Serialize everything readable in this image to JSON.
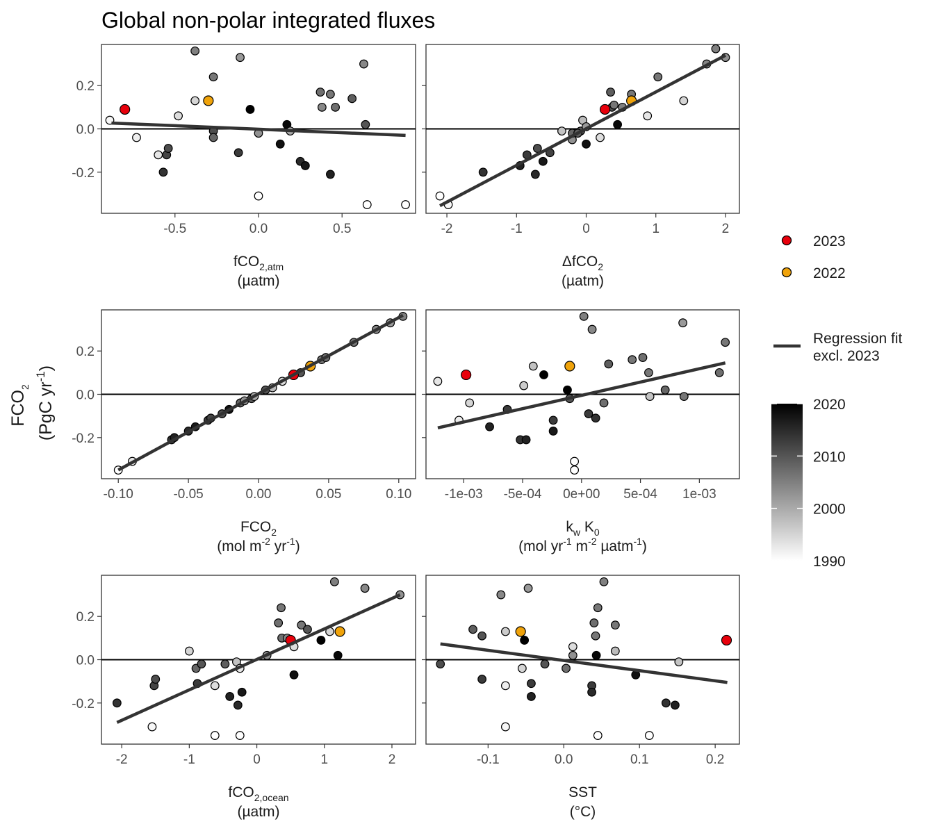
{
  "title": "Global non-polar integrated fluxes",
  "y_axis": {
    "main": "FCO",
    "sub": "2",
    "unit_a": "(PgC yr",
    "unit_sup": "-1",
    "unit_b": ")"
  },
  "legend": {
    "points": [
      {
        "label": "2023",
        "color": "#e8000b"
      },
      {
        "label": "2022",
        "color": "#f0a30a"
      }
    ],
    "fit_label_line1": "Regression fit",
    "fit_label_line2": "excl. 2023",
    "colorbar": {
      "min": 1990,
      "max": 2020,
      "ticks": [
        "2020",
        "2010",
        "2000",
        "1990"
      ],
      "low_color": "#ffffff",
      "high_color": "#000000"
    }
  },
  "chart_data": [
    {
      "type": "scatter",
      "id": "fco2atm",
      "xlabel_parts": [
        [
          "fCO",
          ""
        ],
        [
          "2,atm",
          "sub"
        ]
      ],
      "xlabel_line2": "(µatm)",
      "x_ticks": [
        "-0.5",
        "0.0",
        "0.5"
      ],
      "x_tick_values": [
        -0.5,
        0.0,
        0.5
      ],
      "xlim": [
        -0.94,
        0.94
      ],
      "ylim": [
        -0.39,
        0.39
      ],
      "y_ticks": [
        "0.2",
        "0.0",
        "-0.2"
      ],
      "y_tick_values": [
        0.2,
        0.0,
        -0.2
      ],
      "fit": {
        "x": [
          -0.88,
          0.88
        ],
        "y": [
          0.027,
          -0.03
        ]
      },
      "points": [
        [
          -0.89,
          0.04,
          1991
        ],
        [
          -0.8,
          0.09,
          2023
        ],
        [
          -0.73,
          -0.04,
          1992
        ],
        [
          -0.6,
          -0.12,
          1993
        ],
        [
          -0.57,
          -0.2,
          2014
        ],
        [
          -0.55,
          -0.12,
          2012
        ],
        [
          -0.54,
          -0.09,
          2011
        ],
        [
          -0.48,
          0.06,
          1994
        ],
        [
          -0.38,
          0.36,
          2005
        ],
        [
          -0.38,
          0.13,
          1995
        ],
        [
          -0.3,
          0.13,
          2022
        ],
        [
          -0.27,
          0.24,
          2006
        ],
        [
          -0.27,
          -0.01,
          2011
        ],
        [
          -0.27,
          -0.04,
          2008
        ],
        [
          -0.12,
          -0.11,
          2013
        ],
        [
          -0.11,
          0.33,
          2002
        ],
        [
          -0.05,
          0.09,
          2020
        ],
        [
          0.0,
          -0.02,
          2003
        ],
        [
          0.0,
          -0.31,
          1990
        ],
        [
          0.13,
          -0.07,
          2018
        ],
        [
          0.17,
          0.02,
          2019
        ],
        [
          0.19,
          -0.01,
          2000
        ],
        [
          0.25,
          -0.15,
          2015
        ],
        [
          0.28,
          -0.17,
          2017
        ],
        [
          0.37,
          0.17,
          2007
        ],
        [
          0.38,
          0.1,
          2004
        ],
        [
          0.43,
          0.16,
          2006
        ],
        [
          0.43,
          -0.21,
          2016
        ],
        [
          0.46,
          0.1,
          2007
        ],
        [
          0.56,
          0.14,
          2009
        ],
        [
          0.63,
          0.3,
          2004
        ],
        [
          0.64,
          0.02,
          2010
        ],
        [
          0.65,
          -0.35,
          1989
        ],
        [
          0.88,
          -0.35,
          1990
        ]
      ]
    },
    {
      "type": "scatter",
      "id": "dfco2",
      "xlabel_parts": [
        [
          "ΔfCO",
          ""
        ],
        [
          "2",
          "sub"
        ]
      ],
      "xlabel_line2": "(µatm)",
      "x_ticks": [
        "-2",
        "-1",
        "0",
        "1",
        "2"
      ],
      "x_tick_values": [
        -2,
        -1,
        0,
        1,
        2
      ],
      "xlim": [
        -2.3,
        2.2
      ],
      "ylim": [
        -0.39,
        0.39
      ],
      "y_ticks": [],
      "y_tick_values": [
        0.2,
        0.0,
        -0.2
      ],
      "fit": {
        "x": [
          -2.1,
          2.0
        ],
        "y": [
          -0.355,
          0.34
        ]
      },
      "points": [
        [
          -2.1,
          -0.31,
          1990
        ],
        [
          -1.98,
          -0.35,
          1991
        ],
        [
          -1.48,
          -0.2,
          2014
        ],
        [
          -0.95,
          -0.17,
          2016
        ],
        [
          -0.85,
          -0.12,
          2013
        ],
        [
          -0.73,
          -0.21,
          2015
        ],
        [
          -0.7,
          -0.09,
          2011
        ],
        [
          -0.62,
          -0.15,
          2017
        ],
        [
          -0.52,
          -0.11,
          2012
        ],
        [
          -0.35,
          -0.01,
          1997
        ],
        [
          -0.2,
          -0.05,
          2003
        ],
        [
          -0.2,
          -0.02,
          2008
        ],
        [
          -0.08,
          -0.01,
          2010
        ],
        [
          -0.05,
          0.04,
          1998
        ],
        [
          0.0,
          0.01,
          2002
        ],
        [
          0.0,
          -0.07,
          2018
        ],
        [
          -0.12,
          -0.02,
          2009
        ],
        [
          0.2,
          -0.04,
          1994
        ],
        [
          0.27,
          0.09,
          2023
        ],
        [
          0.35,
          0.17,
          2009
        ],
        [
          0.37,
          0.1,
          2010
        ],
        [
          0.4,
          0.11,
          2006
        ],
        [
          0.45,
          0.02,
          2019
        ],
        [
          0.52,
          0.1,
          2005
        ],
        [
          0.65,
          0.16,
          2006
        ],
        [
          0.65,
          0.13,
          2022
        ],
        [
          0.88,
          0.06,
          1993
        ],
        [
          1.03,
          0.24,
          2006
        ],
        [
          1.4,
          0.13,
          1995
        ],
        [
          1.73,
          0.3,
          2004
        ],
        [
          1.86,
          0.37,
          2005
        ],
        [
          2.0,
          0.33,
          2003
        ]
      ]
    },
    {
      "type": "scatter",
      "id": "fco2flux",
      "xlabel_parts": [
        [
          "FCO",
          ""
        ],
        [
          "2",
          "sub"
        ]
      ],
      "xlabel_line2_parts": [
        [
          "(mol m",
          ""
        ],
        [
          "-2",
          "sup"
        ],
        [
          " yr",
          ""
        ],
        [
          "-1",
          "sup"
        ],
        [
          ")",
          ""
        ]
      ],
      "x_ticks": [
        "-0.10",
        "-0.05",
        "0.00",
        "0.05",
        "0.10"
      ],
      "x_tick_values": [
        -0.1,
        -0.05,
        0.0,
        0.05,
        0.1
      ],
      "xlim": [
        -0.112,
        0.112
      ],
      "ylim": [
        -0.39,
        0.39
      ],
      "y_ticks": [
        "0.2",
        "0.0",
        "-0.2"
      ],
      "y_tick_values": [
        0.2,
        0.0,
        -0.2
      ],
      "fit": {
        "x": [
          -0.1,
          0.103
        ],
        "y": [
          -0.35,
          0.365
        ]
      },
      "points": [
        [
          -0.1,
          -0.35,
          1989
        ],
        [
          -0.09,
          -0.31,
          1993
        ],
        [
          -0.062,
          -0.21,
          2014
        ],
        [
          -0.06,
          -0.2,
          2016
        ],
        [
          -0.05,
          -0.17,
          2015
        ],
        [
          -0.045,
          -0.15,
          2017
        ],
        [
          -0.036,
          -0.12,
          2013
        ],
        [
          -0.034,
          -0.11,
          2012
        ],
        [
          -0.026,
          -0.09,
          2011
        ],
        [
          -0.021,
          -0.07,
          2018
        ],
        [
          -0.013,
          -0.04,
          2008
        ],
        [
          -0.01,
          -0.03,
          2003
        ],
        [
          -0.005,
          -0.02,
          2009
        ],
        [
          -0.003,
          -0.01,
          2000
        ],
        [
          0.005,
          0.02,
          2010
        ],
        [
          0.01,
          0.03,
          1998
        ],
        [
          0.017,
          0.06,
          1994
        ],
        [
          0.025,
          0.09,
          2023
        ],
        [
          0.03,
          0.1,
          2010
        ],
        [
          0.037,
          0.13,
          2022
        ],
        [
          0.045,
          0.16,
          2006
        ],
        [
          0.048,
          0.17,
          2007
        ],
        [
          0.068,
          0.24,
          2006
        ],
        [
          0.084,
          0.3,
          2004
        ],
        [
          0.094,
          0.33,
          2002
        ],
        [
          0.103,
          0.36,
          2005
        ]
      ]
    },
    {
      "type": "scatter",
      "id": "kwk0",
      "xlabel_parts": [
        [
          "k",
          ""
        ],
        [
          "w",
          "sub"
        ],
        [
          " K",
          ""
        ],
        [
          "0",
          "sub"
        ]
      ],
      "xlabel_line2_parts": [
        [
          "(mol yr",
          ""
        ],
        [
          "-1",
          "sup"
        ],
        [
          " m",
          ""
        ],
        [
          "-2",
          "sup"
        ],
        [
          " µatm",
          ""
        ],
        [
          "-1",
          "sup"
        ],
        [
          ")",
          ""
        ]
      ],
      "x_ticks": [
        "-1e-03",
        "-5e-04",
        "0e+00",
        "5e-04",
        "1e-03"
      ],
      "x_tick_values": [
        -0.001,
        -0.0005,
        0.0,
        0.0005,
        0.001
      ],
      "xlim": [
        -0.00132,
        0.00134
      ],
      "ylim": [
        -0.39,
        0.39
      ],
      "y_ticks": [],
      "y_tick_values": [
        0.2,
        0.0,
        -0.2
      ],
      "fit": {
        "x": [
          -0.00122,
          0.00122
        ],
        "y": [
          -0.155,
          0.145
        ]
      },
      "points": [
        [
          -0.00122,
          0.06,
          1993
        ],
        [
          -0.00098,
          0.09,
          2023
        ],
        [
          -0.00095,
          -0.04,
          1995
        ],
        [
          -0.00104,
          -0.12,
          1992
        ],
        [
          -0.00078,
          -0.15,
          2016
        ],
        [
          -0.00063,
          -0.07,
          2013
        ],
        [
          -0.00052,
          -0.21,
          2014
        ],
        [
          -0.00047,
          -0.21,
          2016
        ],
        [
          -0.00049,
          0.04,
          1996
        ],
        [
          -0.00041,
          0.13,
          1997
        ],
        [
          -0.00032,
          0.09,
          2020
        ],
        [
          -0.00024,
          -0.12,
          2013
        ],
        [
          -0.00024,
          -0.17,
          2017
        ],
        [
          -0.0001,
          0.13,
          2022
        ],
        [
          -0.00012,
          0.02,
          2020
        ],
        [
          -0.0001,
          -0.02,
          2010
        ],
        [
          -6e-05,
          -0.31,
          1990
        ],
        [
          -6e-05,
          -0.35,
          1990
        ],
        [
          2e-05,
          0.36,
          2005
        ],
        [
          6e-05,
          -0.09,
          2013
        ],
        [
          9e-05,
          0.3,
          2004
        ],
        [
          0.00012,
          -0.11,
          2014
        ],
        [
          0.00019,
          -0.04,
          2007
        ],
        [
          0.00023,
          0.14,
          2009
        ],
        [
          0.00043,
          0.16,
          2006
        ],
        [
          0.00052,
          0.17,
          2007
        ],
        [
          0.00057,
          0.1,
          2006
        ],
        [
          0.00058,
          -0.01,
          1997
        ],
        [
          0.00071,
          0.02,
          2008
        ],
        [
          0.00086,
          0.33,
          2002
        ],
        [
          0.00087,
          -0.01,
          2006
        ],
        [
          0.00117,
          0.1,
          2007
        ],
        [
          0.00122,
          0.24,
          2006
        ]
      ]
    },
    {
      "type": "scatter",
      "id": "fco2ocean",
      "xlabel_parts": [
        [
          "fCO",
          ""
        ],
        [
          "2,ocean",
          "sub"
        ]
      ],
      "xlabel_line2": "(µatm)",
      "x_ticks": [
        "-2",
        "-1",
        "0",
        "1",
        "2"
      ],
      "x_tick_values": [
        -2,
        -1,
        0,
        1,
        2
      ],
      "xlim": [
        -2.3,
        2.35
      ],
      "ylim": [
        -0.39,
        0.39
      ],
      "y_ticks": [
        "0.2",
        "0.0",
        "-0.2"
      ],
      "y_tick_values": [
        0.2,
        0.0,
        -0.2
      ],
      "fit": {
        "x": [
          -2.07,
          2.12
        ],
        "y": [
          -0.29,
          0.3
        ]
      },
      "points": [
        [
          -2.07,
          -0.2,
          2014
        ],
        [
          -1.55,
          -0.31,
          1991
        ],
        [
          -1.52,
          -0.12,
          2012
        ],
        [
          -1.5,
          -0.09,
          2011
        ],
        [
          -1.0,
          0.04,
          1995
        ],
        [
          -0.9,
          -0.04,
          2008
        ],
        [
          -0.88,
          -0.11,
          2013
        ],
        [
          -0.82,
          -0.02,
          2010
        ],
        [
          -0.62,
          -0.35,
          1990
        ],
        [
          -0.62,
          -0.12,
          1994
        ],
        [
          -0.47,
          -0.02,
          2009
        ],
        [
          -0.4,
          -0.17,
          2016
        ],
        [
          -0.3,
          -0.01,
          1997
        ],
        [
          -0.28,
          -0.21,
          2015
        ],
        [
          -0.25,
          -0.35,
          1990
        ],
        [
          -0.25,
          -0.04,
          1993
        ],
        [
          -0.22,
          -0.15,
          2017
        ],
        [
          0.15,
          0.02,
          2003
        ],
        [
          0.32,
          0.17,
          2007
        ],
        [
          0.36,
          0.24,
          2006
        ],
        [
          0.37,
          0.1,
          2007
        ],
        [
          0.45,
          0.1,
          2004
        ],
        [
          0.5,
          0.09,
          2023
        ],
        [
          0.55,
          -0.07,
          2018
        ],
        [
          0.55,
          0.06,
          1994
        ],
        [
          0.66,
          0.16,
          2006
        ],
        [
          0.75,
          0.14,
          2010
        ],
        [
          0.95,
          0.09,
          2020
        ],
        [
          1.08,
          0.13,
          1995
        ],
        [
          1.15,
          0.36,
          2005
        ],
        [
          1.2,
          0.02,
          2019
        ],
        [
          1.23,
          0.13,
          2022
        ],
        [
          1.6,
          0.33,
          2004
        ],
        [
          2.12,
          0.3,
          2003
        ]
      ]
    },
    {
      "type": "scatter",
      "id": "sst",
      "xlabel_parts": [
        [
          "SST",
          ""
        ]
      ],
      "xlabel_line2": "(°C)",
      "x_ticks": [
        "-0.1",
        "0.0",
        "0.1",
        "0.2"
      ],
      "x_tick_values": [
        -0.1,
        0.0,
        0.1,
        0.2
      ],
      "xlim": [
        -0.182,
        0.232
      ],
      "ylim": [
        -0.39,
        0.39
      ],
      "y_ticks": [],
      "y_tick_values": [
        0.2,
        0.0,
        -0.2
      ],
      "fit": {
        "x": [
          -0.163,
          0.216
        ],
        "y": [
          0.073,
          -0.105
        ]
      },
      "points": [
        [
          -0.163,
          -0.02,
          2011
        ],
        [
          -0.12,
          0.14,
          2009
        ],
        [
          -0.108,
          0.11,
          2010
        ],
        [
          -0.108,
          -0.09,
          2013
        ],
        [
          -0.083,
          0.3,
          2004
        ],
        [
          -0.077,
          0.13,
          1996
        ],
        [
          -0.077,
          -0.12,
          1992
        ],
        [
          -0.077,
          -0.31,
          1991
        ],
        [
          -0.057,
          0.13,
          2022
        ],
        [
          -0.055,
          -0.04,
          1995
        ],
        [
          -0.052,
          0.09,
          2020
        ],
        [
          -0.047,
          0.33,
          2002
        ],
        [
          -0.043,
          -0.11,
          2013
        ],
        [
          -0.043,
          -0.17,
          2016
        ],
        [
          -0.025,
          -0.02,
          2010
        ],
        [
          0.003,
          -0.04,
          2007
        ],
        [
          0.012,
          0.06,
          1994
        ],
        [
          0.012,
          0.02,
          2003
        ],
        [
          0.037,
          -0.12,
          2013
        ],
        [
          0.037,
          -0.15,
          2015
        ],
        [
          0.04,
          0.17,
          2007
        ],
        [
          0.042,
          0.11,
          2006
        ],
        [
          0.043,
          0.02,
          2019
        ],
        [
          0.045,
          0.24,
          2006
        ],
        [
          0.045,
          -0.35,
          1990
        ],
        [
          0.053,
          0.36,
          2005
        ],
        [
          0.068,
          0.16,
          2006
        ],
        [
          0.068,
          0.04,
          1998
        ],
        [
          0.095,
          -0.07,
          2018
        ],
        [
          0.113,
          -0.35,
          1990
        ],
        [
          0.135,
          -0.2,
          2014
        ],
        [
          0.147,
          -0.21,
          2016
        ],
        [
          0.152,
          -0.01,
          1997
        ],
        [
          0.215,
          0.09,
          2023
        ]
      ]
    }
  ]
}
